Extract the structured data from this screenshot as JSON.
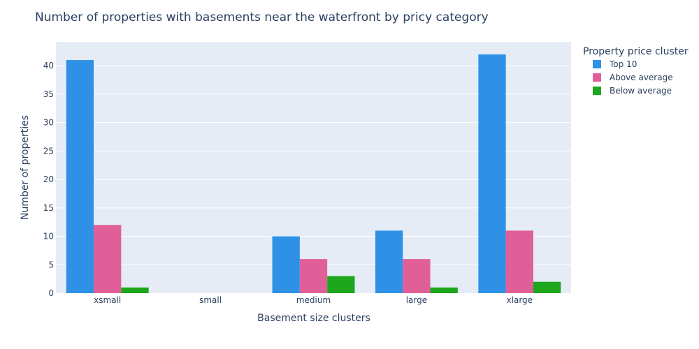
{
  "chart_data": {
    "type": "bar",
    "title": "Number of properties with basements near the waterfront by pricy category",
    "xlabel": "Basement size clusters",
    "ylabel": "Number of properties",
    "categories": [
      "xsmall",
      "small",
      "medium",
      "large",
      "xlarge"
    ],
    "series": [
      {
        "name": "Top 10",
        "color": "#2e91e5",
        "values": [
          41,
          0,
          10,
          11,
          42
        ]
      },
      {
        "name": "Above average",
        "color": "#e15f99",
        "values": [
          12,
          0,
          6,
          6,
          11
        ]
      },
      {
        "name": "Below average",
        "color": "#1ca71c",
        "values": [
          1,
          0,
          3,
          1,
          2
        ]
      }
    ],
    "ylim": [
      0,
      44.2
    ],
    "yticks": [
      0,
      5,
      10,
      15,
      20,
      25,
      30,
      35,
      40
    ],
    "grid": true,
    "legend": {
      "title": "Property price cluster",
      "position": "top-right"
    },
    "plot_background": "#e5ecf6"
  }
}
